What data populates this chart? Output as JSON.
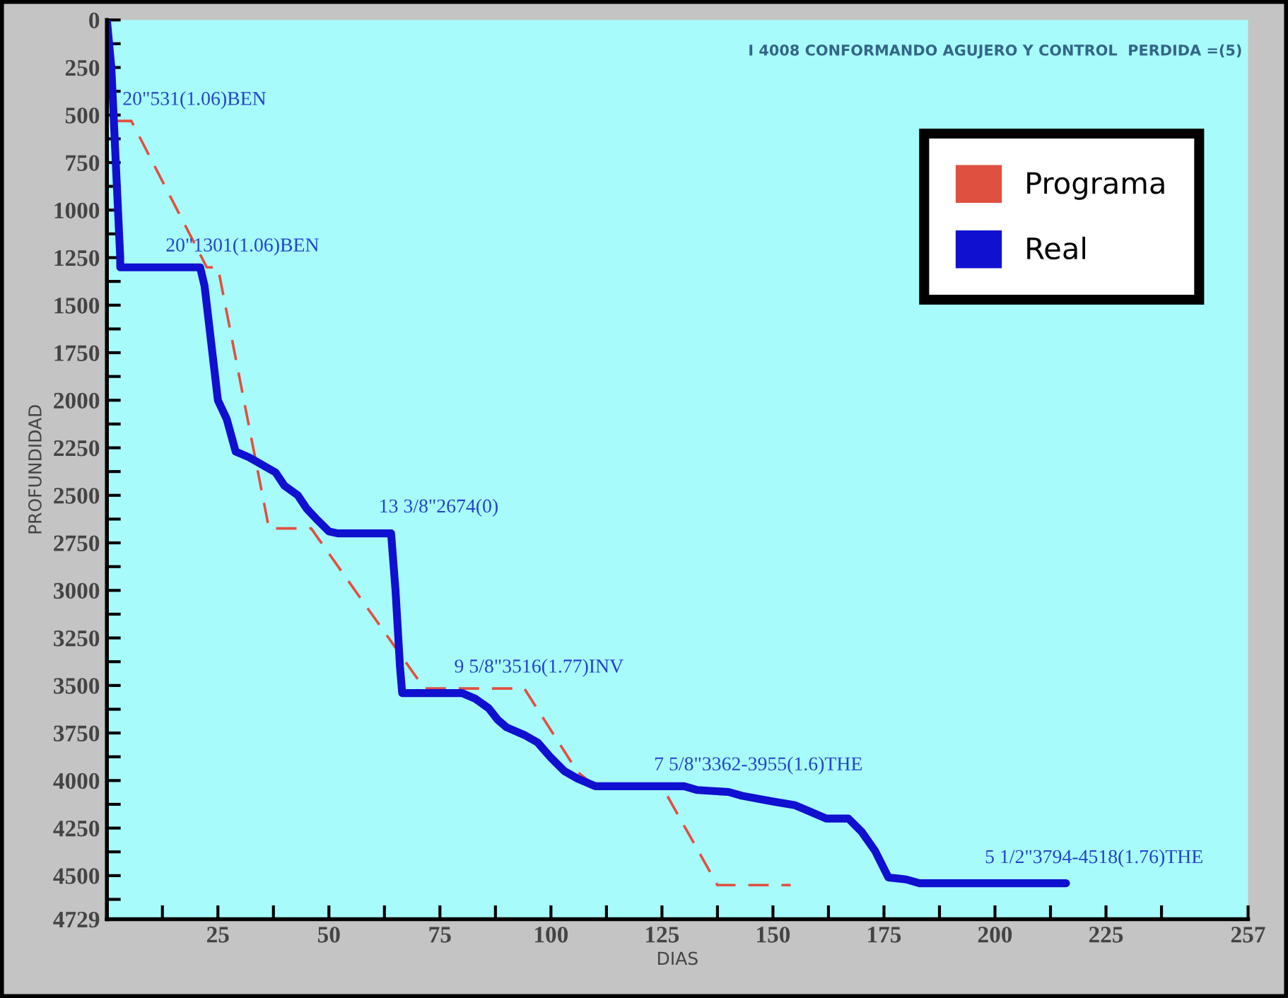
{
  "chart_data": {
    "type": "line",
    "title": "I 4008 CONFORMANDO AGUJERO Y CONTROL  PERDIDA =(5)",
    "xlabel": "DIAS",
    "ylabel": "PROFUNDIDAD",
    "xlim": [
      0,
      257
    ],
    "ylim": [
      4729,
      0
    ],
    "xticks": [
      {
        "value": 12.5,
        "label": null
      },
      25,
      {
        "value": 37.5,
        "label": null
      },
      50,
      {
        "value": 62.5,
        "label": null
      },
      75,
      {
        "value": 87.5,
        "label": null
      },
      100,
      {
        "value": 112.5,
        "label": null
      },
      125,
      {
        "value": 137.5,
        "label": null
      },
      150,
      {
        "value": 162.5,
        "label": null
      },
      175,
      {
        "value": 187.5,
        "label": null
      },
      200,
      {
        "value": 212.5,
        "label": null
      },
      225,
      {
        "value": 237.5,
        "label": null
      },
      257
    ],
    "yticks": [
      0,
      {
        "value": 125,
        "label": null
      },
      250,
      {
        "value": 375,
        "label": null
      },
      500,
      {
        "value": 625,
        "label": null
      },
      750,
      {
        "value": 875,
        "label": null
      },
      1000,
      {
        "value": 1125,
        "label": null
      },
      1250,
      {
        "value": 1375,
        "label": null
      },
      1500,
      {
        "value": 1625,
        "label": null
      },
      1750,
      {
        "value": 1875,
        "label": null
      },
      2000,
      {
        "value": 2125,
        "label": null
      },
      2250,
      {
        "value": 2375,
        "label": null
      },
      2500,
      {
        "value": 2625,
        "label": null
      },
      2750,
      {
        "value": 2875,
        "label": null
      },
      3000,
      {
        "value": 3125,
        "label": null
      },
      3250,
      {
        "value": 3375,
        "label": null
      },
      3500,
      {
        "value": 3625,
        "label": null
      },
      3750,
      {
        "value": 3875,
        "label": null
      },
      4000,
      {
        "value": 4125,
        "label": null
      },
      4250,
      {
        "value": 4375,
        "label": null
      },
      4500,
      {
        "value": 4625,
        "label": null
      },
      4729
    ],
    "grid": false,
    "legend": "top right",
    "series": [
      {
        "name": "Programa",
        "color": "#e05040",
        "line_style": "dashed",
        "x": [
          2,
          5.5,
          22.5,
          25,
          36.5,
          46,
          71.5,
          94,
          106,
          110,
          125,
          137.5,
          154
        ],
        "values": [
          531,
          531,
          1301,
          1301,
          2674,
          2674,
          3516,
          3516,
          3955,
          4030,
          4030,
          4550,
          4550
        ]
      },
      {
        "name": "Real",
        "color": "#1010d0",
        "line_style": "solid",
        "x": [
          0,
          1,
          1.5,
          2,
          2.5,
          3,
          3,
          21,
          22,
          23,
          24,
          25,
          27,
          29,
          32,
          35,
          38,
          40,
          43,
          45,
          47,
          50,
          52,
          64,
          65,
          66,
          66.5,
          80,
          83,
          86,
          88,
          90,
          94,
          97,
          100,
          103,
          106,
          110,
          130,
          133,
          140,
          143,
          150,
          155,
          157,
          162,
          167,
          170,
          173,
          176,
          180,
          183,
          216
        ],
        "values": [
          0,
          250,
          500,
          750,
          1000,
          1250,
          1301,
          1301,
          1400,
          1600,
          1800,
          2000,
          2100,
          2270,
          2300,
          2340,
          2380,
          2450,
          2500,
          2570,
          2620,
          2690,
          2700,
          2700,
          3000,
          3400,
          3540,
          3540,
          3570,
          3620,
          3680,
          3720,
          3760,
          3800,
          3880,
          3950,
          3990,
          4030,
          4030,
          4050,
          4060,
          4080,
          4110,
          4130,
          4150,
          4200,
          4200,
          4270,
          4370,
          4510,
          4520,
          4540,
          4540
        ]
      }
    ],
    "annotations": [
      {
        "text": "20\"531(1.06)BEN",
        "x": 1.3,
        "y": 531
      },
      {
        "text": "20\"1301(1.06)BEN",
        "x": 11,
        "y": 1301
      },
      {
        "text": "13 3/8\"2674(0)",
        "x": 59,
        "y": 2674
      },
      {
        "text": "9 5/8\"3516(1.77)INV",
        "x": 76,
        "y": 3516
      },
      {
        "text": "7 5/8\"3362-3955(1.6)THE",
        "x": 121,
        "y": 4030
      },
      {
        "text": "5 1/2\"3794-4518(1.76)THE",
        "x": 195.5,
        "y": 4518
      }
    ]
  }
}
